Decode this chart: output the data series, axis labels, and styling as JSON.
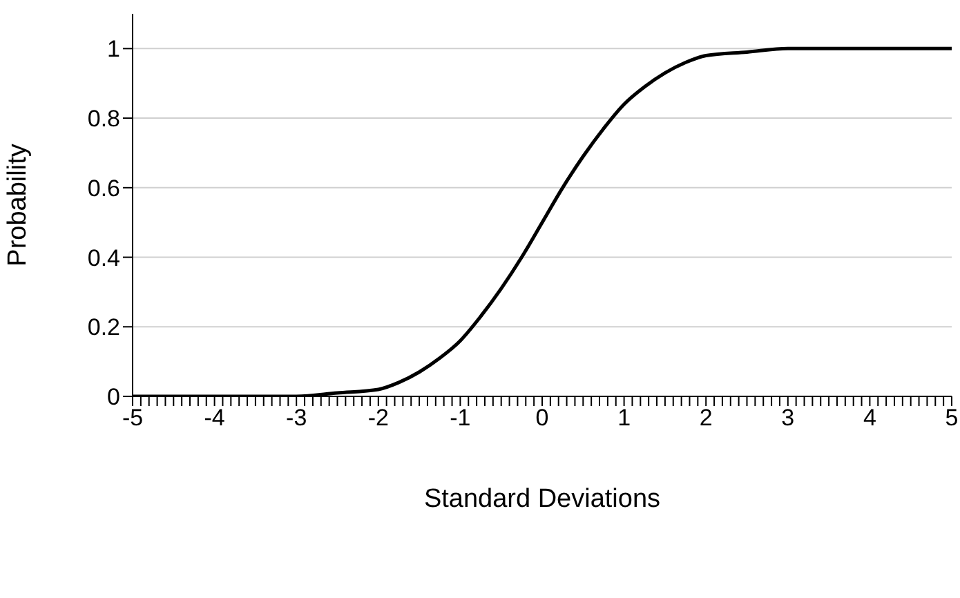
{
  "chart_data": {
    "type": "line",
    "xlabel": "Standard Deviations",
    "ylabel": "Probability",
    "x": [
      -5,
      -4.5,
      -4,
      -3.5,
      -3,
      -2.5,
      -2,
      -1.75,
      -1.5,
      -1.25,
      -1,
      -0.75,
      -0.5,
      -0.25,
      0,
      0.25,
      0.5,
      0.75,
      1,
      1.25,
      1.5,
      1.75,
      2,
      2.5,
      3,
      3.5,
      4,
      4.5,
      5
    ],
    "series": [
      {
        "color": "#000000",
        "values": [
          0,
          0,
          0,
          0,
          0,
          0.01,
          0.02,
          0.04,
          0.07,
          0.11,
          0.16,
          0.23,
          0.31,
          0.4,
          0.5,
          0.6,
          0.69,
          0.77,
          0.84,
          0.89,
          0.93,
          0.96,
          0.98,
          0.99,
          1,
          1,
          1,
          1,
          1
        ]
      }
    ],
    "xlim": [
      -5,
      5
    ],
    "ylim": [
      0,
      1.1
    ],
    "yticks": [
      0,
      0.2,
      0.4,
      0.6,
      0.8,
      1
    ],
    "xticks": [
      -5,
      {
        "value": -4.9,
        "label": null
      },
      {
        "value": -4.8,
        "label": null
      },
      {
        "value": -4.7,
        "label": null
      },
      {
        "value": -4.6,
        "label": null
      },
      {
        "value": -4.5,
        "label": null
      },
      {
        "value": -4.4,
        "label": null
      },
      {
        "value": -4.3,
        "label": null
      },
      {
        "value": -4.2,
        "label": null
      },
      {
        "value": -4.1,
        "label": null
      },
      -4,
      {
        "value": -3.9,
        "label": null
      },
      {
        "value": -3.8,
        "label": null
      },
      {
        "value": -3.7,
        "label": null
      },
      {
        "value": -3.6,
        "label": null
      },
      {
        "value": -3.5,
        "label": null
      },
      {
        "value": -3.4,
        "label": null
      },
      {
        "value": -3.3,
        "label": null
      },
      {
        "value": -3.2,
        "label": null
      },
      {
        "value": -3.1,
        "label": null
      },
      -3,
      {
        "value": -2.9,
        "label": null
      },
      {
        "value": -2.8,
        "label": null
      },
      {
        "value": -2.7,
        "label": null
      },
      {
        "value": -2.6,
        "label": null
      },
      {
        "value": -2.5,
        "label": null
      },
      {
        "value": -2.4,
        "label": null
      },
      {
        "value": -2.3,
        "label": null
      },
      {
        "value": -2.2,
        "label": null
      },
      {
        "value": -2.1,
        "label": null
      },
      -2,
      {
        "value": -1.9,
        "label": null
      },
      {
        "value": -1.8,
        "label": null
      },
      {
        "value": -1.7,
        "label": null
      },
      {
        "value": -1.6,
        "label": null
      },
      {
        "value": -1.5,
        "label": null
      },
      {
        "value": -1.4,
        "label": null
      },
      {
        "value": -1.3,
        "label": null
      },
      {
        "value": -1.2,
        "label": null
      },
      {
        "value": -1.1,
        "label": null
      },
      -1,
      {
        "value": -0.9,
        "label": null
      },
      {
        "value": -0.8,
        "label": null
      },
      {
        "value": -0.7,
        "label": null
      },
      {
        "value": -0.6,
        "label": null
      },
      {
        "value": -0.5,
        "label": null
      },
      {
        "value": -0.4,
        "label": null
      },
      {
        "value": -0.3,
        "label": null
      },
      {
        "value": -0.2,
        "label": null
      },
      {
        "value": -0.1,
        "label": null
      },
      0,
      {
        "value": 0.1,
        "label": null
      },
      {
        "value": 0.2,
        "label": null
      },
      {
        "value": 0.3,
        "label": null
      },
      {
        "value": 0.4,
        "label": null
      },
      {
        "value": 0.5,
        "label": null
      },
      {
        "value": 0.6,
        "label": null
      },
      {
        "value": 0.7,
        "label": null
      },
      {
        "value": 0.8,
        "label": null
      },
      {
        "value": 0.9,
        "label": null
      },
      1,
      {
        "value": 1.1,
        "label": null
      },
      {
        "value": 1.2,
        "label": null
      },
      {
        "value": 1.3,
        "label": null
      },
      {
        "value": 1.4,
        "label": null
      },
      {
        "value": 1.5,
        "label": null
      },
      {
        "value": 1.6,
        "label": null
      },
      {
        "value": 1.7,
        "label": null
      },
      {
        "value": 1.8,
        "label": null
      },
      {
        "value": 1.9,
        "label": null
      },
      2,
      {
        "value": 2.1,
        "label": null
      },
      {
        "value": 2.2,
        "label": null
      },
      {
        "value": 2.3,
        "label": null
      },
      {
        "value": 2.4,
        "label": null
      },
      {
        "value": 2.5,
        "label": null
      },
      {
        "value": 2.6,
        "label": null
      },
      {
        "value": 2.7,
        "label": null
      },
      {
        "value": 2.8,
        "label": null
      },
      {
        "value": 2.9,
        "label": null
      },
      3,
      {
        "value": 3.1,
        "label": null
      },
      {
        "value": 3.2,
        "label": null
      },
      {
        "value": 3.3,
        "label": null
      },
      {
        "value": 3.4,
        "label": null
      },
      {
        "value": 3.5,
        "label": null
      },
      {
        "value": 3.6,
        "label": null
      },
      {
        "value": 3.7,
        "label": null
      },
      {
        "value": 3.8,
        "label": null
      },
      {
        "value": 3.9,
        "label": null
      },
      4,
      {
        "value": 4.1,
        "label": null
      },
      {
        "value": 4.2,
        "label": null
      },
      {
        "value": 4.3,
        "label": null
      },
      {
        "value": 4.4,
        "label": null
      },
      {
        "value": 4.5,
        "label": null
      },
      {
        "value": 4.6,
        "label": null
      },
      {
        "value": 4.7,
        "label": null
      },
      {
        "value": 4.8,
        "label": null
      },
      {
        "value": 4.9,
        "label": null
      },
      5
    ],
    "grid": "y",
    "marker": "none",
    "line_style": "solid"
  }
}
